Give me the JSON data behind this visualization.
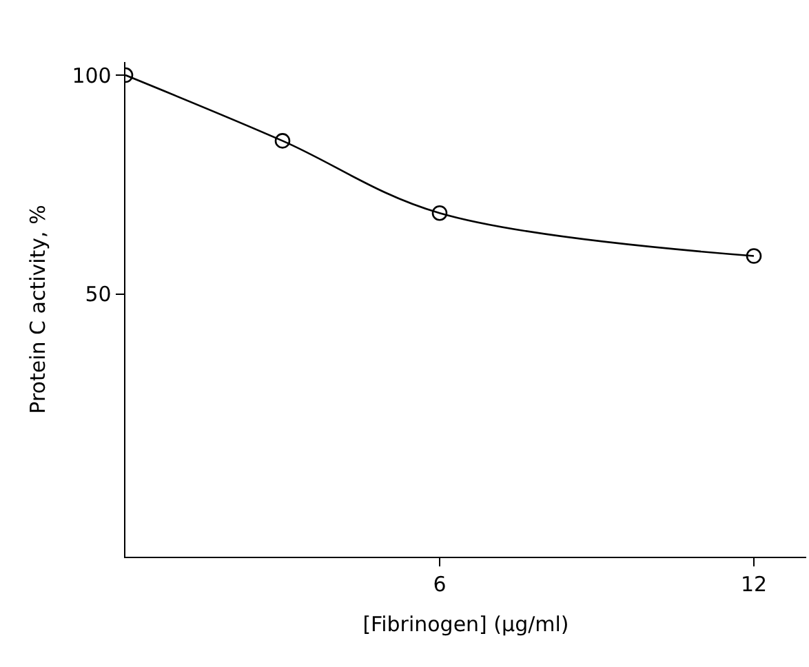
{
  "chart_data": {
    "type": "line",
    "xlabel": "[Fibrinogen] (µg/ml)",
    "ylabel": "Protein C activity, %",
    "x": [
      0,
      3,
      6,
      12
    ],
    "series": [
      {
        "color": "#000000",
        "values": [
          100,
          85,
          68.5,
          58.7
        ]
      }
    ],
    "xlim": [
      0,
      13
    ],
    "ylim": [
      -10,
      103
    ],
    "xticks": [
      6,
      12
    ],
    "yticks": [
      50,
      100
    ],
    "marker": "circle",
    "line_style": "solid"
  }
}
